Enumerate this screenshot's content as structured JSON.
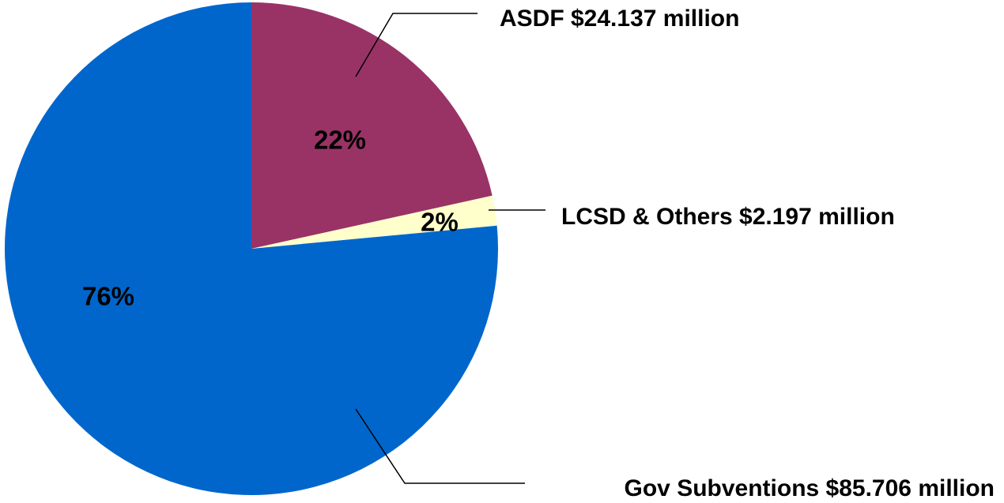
{
  "chart_data": {
    "type": "pie",
    "title": "",
    "slices": [
      {
        "name": "ASDF",
        "callout": "ASDF $24.137 million",
        "amount_million": 24.137,
        "percent_label": "22%",
        "color": "#993366"
      },
      {
        "name": "LCSD & Others",
        "callout": "LCSD & Others $2.197 million",
        "amount_million": 2.197,
        "percent_label": "2%",
        "color": "#FFFFCC"
      },
      {
        "name": "Gov Subventions",
        "callout": "Gov Subventions $85.706 million",
        "amount_million": 85.706,
        "percent_label": "76%",
        "color": "#0066CC"
      }
    ],
    "start_angle": "12 o'clock",
    "direction": "clockwise",
    "legend": "none",
    "grid": false
  }
}
